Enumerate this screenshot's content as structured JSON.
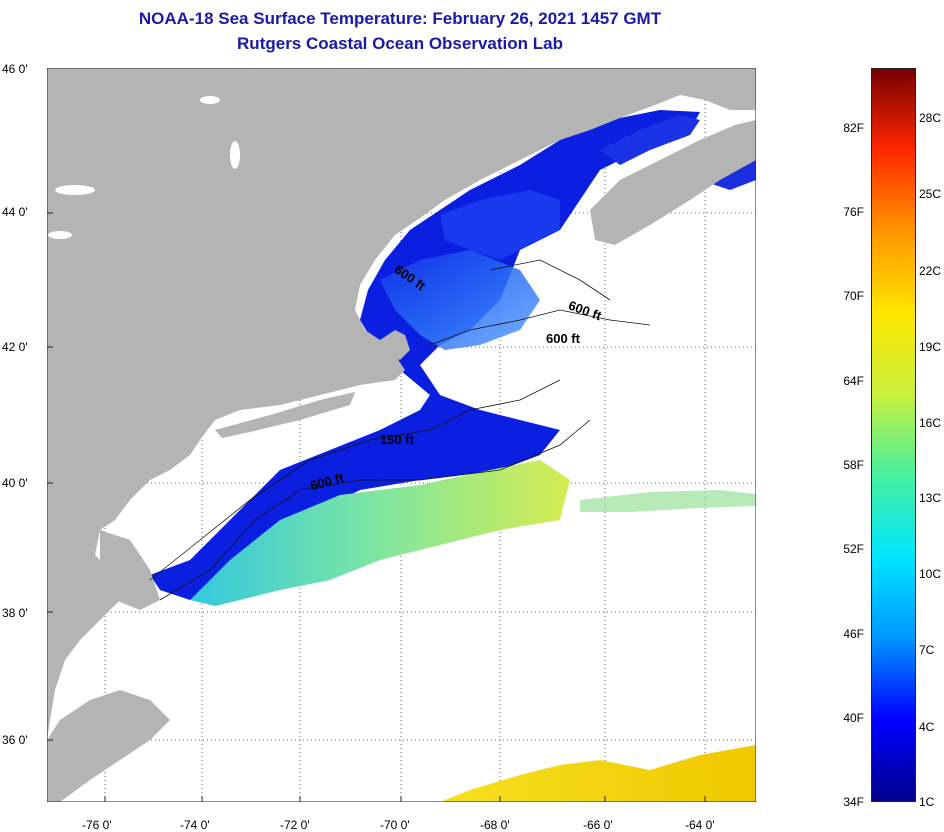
{
  "title": {
    "line1": "NOAA-18 Sea Surface Temperature:  February 26, 2021 1457 GMT",
    "line2": "Rutgers Coastal Ocean Observation Lab"
  },
  "map": {
    "lat_labels": [
      "46 0'",
      "44 0'",
      "42 0'",
      "40 0'",
      "38 0'",
      "36 0'"
    ],
    "lon_labels": [
      "-76 0'",
      "-74 0'",
      "-72 0'",
      "-70 0'",
      "-68 0'",
      "-66 0'",
      "-64 0'"
    ],
    "depth_labels": [
      "600 ft",
      "600 ft",
      "600 ft",
      "150 ft",
      "600 ft"
    ],
    "colors": {
      "land": "#b4b4b4",
      "cloud": "#ffffff",
      "grid": "#555555"
    }
  },
  "colorbar": {
    "fahrenheit_labels": [
      "82F",
      "76F",
      "70F",
      "64F",
      "58F",
      "52F",
      "46F",
      "40F",
      "34F"
    ],
    "celsius_labels": [
      "28C",
      "25C",
      "22C",
      "19C",
      "16C",
      "13C",
      "10C",
      "7C",
      "4C",
      "1C"
    ],
    "gradient": [
      "#00008b",
      "#0000ff",
      "#0096ff",
      "#00e6ff",
      "#46f0a0",
      "#c8f03c",
      "#ffe600",
      "#ff9600",
      "#ff2800",
      "#780000"
    ]
  }
}
